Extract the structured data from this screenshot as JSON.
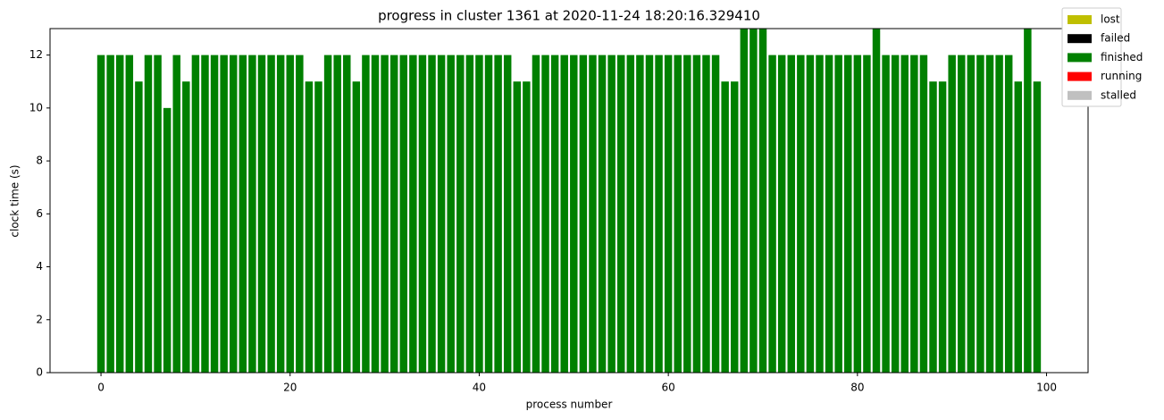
{
  "chart_data": {
    "type": "bar",
    "title": "progress in cluster 1361 at 2020-11-24 18:20:16.329410",
    "xlabel": "process number",
    "ylabel": "clock time (s)",
    "x": [
      0,
      1,
      2,
      3,
      4,
      5,
      6,
      7,
      8,
      9,
      10,
      11,
      12,
      13,
      14,
      15,
      16,
      17,
      18,
      19,
      20,
      21,
      22,
      23,
      24,
      25,
      26,
      27,
      28,
      29,
      30,
      31,
      32,
      33,
      34,
      35,
      36,
      37,
      38,
      39,
      40,
      41,
      42,
      43,
      44,
      45,
      46,
      47,
      48,
      49,
      50,
      51,
      52,
      53,
      54,
      55,
      56,
      57,
      58,
      59,
      60,
      61,
      62,
      63,
      64,
      65,
      66,
      67,
      68,
      69,
      70,
      71,
      72,
      73,
      74,
      75,
      76,
      77,
      78,
      79,
      80,
      81,
      82,
      83,
      84,
      85,
      86,
      87,
      88,
      89,
      90,
      91,
      92,
      93,
      94,
      95,
      96,
      97,
      98,
      99
    ],
    "series": [
      {
        "name": "finished",
        "color": "#008000",
        "values": [
          12,
          12,
          12,
          12,
          11,
          12,
          12,
          10,
          12,
          11,
          12,
          12,
          12,
          12,
          12,
          12,
          12,
          12,
          12,
          12,
          12,
          12,
          11,
          11,
          12,
          12,
          12,
          11,
          12,
          12,
          12,
          12,
          12,
          12,
          12,
          12,
          12,
          12,
          12,
          12,
          12,
          12,
          12,
          12,
          11,
          11,
          12,
          12,
          12,
          12,
          12,
          12,
          12,
          12,
          12,
          12,
          12,
          12,
          12,
          12,
          12,
          12,
          12,
          12,
          12,
          12,
          11,
          11,
          13,
          13,
          13,
          12,
          12,
          12,
          12,
          12,
          12,
          12,
          12,
          12,
          12,
          12,
          13,
          12,
          12,
          12,
          12,
          12,
          11,
          11,
          12,
          12,
          12,
          12,
          12,
          12,
          12,
          11,
          13,
          11
        ]
      }
    ],
    "legend": [
      {
        "name": "lost",
        "color": "#bfbf00"
      },
      {
        "name": "failed",
        "color": "#000000"
      },
      {
        "name": "finished",
        "color": "#008000"
      },
      {
        "name": "running",
        "color": "#ff0000"
      },
      {
        "name": "stalled",
        "color": "#c0c0c0"
      }
    ],
    "legend_position": "upper right outside",
    "bar_width": 0.8,
    "xlim": [
      -5.39,
      104.39
    ],
    "ylim": [
      0,
      13
    ],
    "xticks": [
      0,
      20,
      40,
      60,
      80,
      100
    ],
    "yticks": [
      0,
      2,
      4,
      6,
      8,
      10,
      12
    ],
    "grid": false
  }
}
